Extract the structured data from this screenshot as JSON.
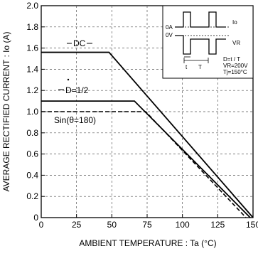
{
  "chart_data": {
    "type": "line",
    "title": "",
    "xlabel": "AMBIENT  TEMPERATURE : Ta (°C)",
    "ylabel": "AVERAGE  RECTIFIED  CURRENT : Io (A)",
    "xlim": [
      0,
      150
    ],
    "ylim": [
      0,
      2.0
    ],
    "x_ticks": [
      "0",
      "25",
      "50",
      "75",
      "100",
      "125",
      "150"
    ],
    "y_ticks": [
      "0",
      "0.2",
      "0.4",
      "0.6",
      "0.8",
      "1.0",
      "1.2",
      "1.4",
      "1.6",
      "1.8",
      "2.0"
    ],
    "grid": "dashed",
    "series": [
      {
        "name": "DC",
        "style": "solid",
        "x": [
          0,
          48,
          150
        ],
        "y": [
          1.56,
          1.56,
          0.0
        ]
      },
      {
        "name": "D=1/2",
        "style": "solid",
        "x": [
          0,
          66,
          148
        ],
        "y": [
          1.1,
          1.1,
          0.0
        ]
      },
      {
        "name": "Sin(θ=180)",
        "style": "dashed",
        "x": [
          0,
          74,
          145
        ],
        "y": [
          1.0,
          1.0,
          0.0
        ]
      }
    ],
    "inset": {
      "labels": {
        "zero_current": "0A",
        "zero_voltage": "0V",
        "current": "Io",
        "voltage": "VR",
        "period": "T",
        "pulse_width": "t",
        "duty": "D=t / T",
        "vr_value": "VR=200V",
        "tj_value": "Tj=150°C"
      }
    }
  }
}
